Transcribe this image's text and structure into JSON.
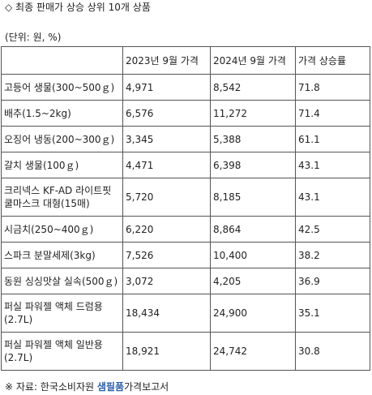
{
  "title": "◇ 최종 판매가 상승 상위 10개 상품",
  "unit_note": "(단위: 원, %)",
  "table": {
    "headers": [
      "",
      "2023년 9월 가격",
      "2024년 9월 가격",
      "가격 상승률"
    ],
    "rows": [
      [
        "고등어 생물(300~500ｇ)",
        "4,971",
        "8,542",
        "71.8"
      ],
      [
        "배추(1.5~2kg)",
        "6,576",
        "11,272",
        "71.4"
      ],
      [
        "오징어 냉동(200~300ｇ)",
        "3,345",
        "5,388",
        "61.1"
      ],
      [
        "갈치 생물(100ｇ)",
        "4,471",
        "6,398",
        "43.1"
      ],
      [
        "크리넥스 KF-AD 라이트핏 쿨마스크 대형(15매)",
        "5,720",
        "8,185",
        "43.1"
      ],
      [
        "시금치(250~400ｇ)",
        "6,220",
        "8,864",
        "42.5"
      ],
      [
        "스파크 분말세제(3kg)",
        "7,526",
        "10,400",
        "38.2"
      ],
      [
        "동원 싱싱맛살 실속(500ｇ)",
        "3,072",
        "4,205",
        "36.9"
      ],
      [
        "퍼실 파워젤 액체 드럼용(2.7L)",
        "18,434",
        "24,900",
        "35.1"
      ],
      [
        "퍼실 파워젤 액체 일반용(2.7L)",
        "18,921",
        "24,742",
        "30.8"
      ]
    ]
  },
  "source": {
    "prefix": "※ 자료: 한국소비자원 ",
    "brand": "샘필품",
    "suffix": "가격보고서"
  }
}
